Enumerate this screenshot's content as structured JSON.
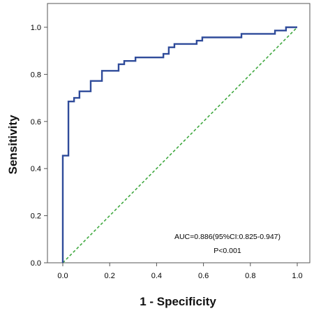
{
  "chart_data": {
    "type": "line",
    "title": "",
    "xlabel": "1 - Specificity",
    "ylabel": "Sensitivity",
    "xlim": [
      0,
      1
    ],
    "ylim": [
      0,
      1
    ],
    "x_ticks": [
      "0.0",
      "0.2",
      "0.4",
      "0.6",
      "0.8",
      "1.0"
    ],
    "y_ticks": [
      "0.0",
      "0.2",
      "0.4",
      "0.6",
      "0.8",
      "1.0"
    ],
    "grid": false,
    "legend": "none",
    "series": [
      {
        "color": "#2f4b9a",
        "style": "solid",
        "points": [
          [
            0.0,
            0.0
          ],
          [
            0.0,
            0.455
          ],
          [
            0.024,
            0.455
          ],
          [
            0.024,
            0.685
          ],
          [
            0.048,
            0.685
          ],
          [
            0.048,
            0.7
          ],
          [
            0.071,
            0.7
          ],
          [
            0.071,
            0.728
          ],
          [
            0.119,
            0.728
          ],
          [
            0.119,
            0.772
          ],
          [
            0.167,
            0.772
          ],
          [
            0.167,
            0.815
          ],
          [
            0.238,
            0.815
          ],
          [
            0.238,
            0.843
          ],
          [
            0.262,
            0.843
          ],
          [
            0.262,
            0.857
          ],
          [
            0.31,
            0.857
          ],
          [
            0.31,
            0.872
          ],
          [
            0.429,
            0.872
          ],
          [
            0.429,
            0.887
          ],
          [
            0.452,
            0.887
          ],
          [
            0.452,
            0.915
          ],
          [
            0.476,
            0.915
          ],
          [
            0.476,
            0.929
          ],
          [
            0.571,
            0.929
          ],
          [
            0.571,
            0.943
          ],
          [
            0.595,
            0.943
          ],
          [
            0.595,
            0.957
          ],
          [
            0.762,
            0.957
          ],
          [
            0.762,
            0.972
          ],
          [
            0.905,
            0.972
          ],
          [
            0.905,
            0.986
          ],
          [
            0.952,
            0.986
          ],
          [
            0.952,
            1.0
          ],
          [
            1.0,
            1.0
          ]
        ]
      },
      {
        "color": "#3fa83f",
        "style": "dashed",
        "points": [
          [
            0,
            0
          ],
          [
            1,
            1
          ]
        ]
      }
    ],
    "annotations": [
      "AUC=0.886(95%CI:0.825-0.947)",
      "P<0.001"
    ]
  }
}
